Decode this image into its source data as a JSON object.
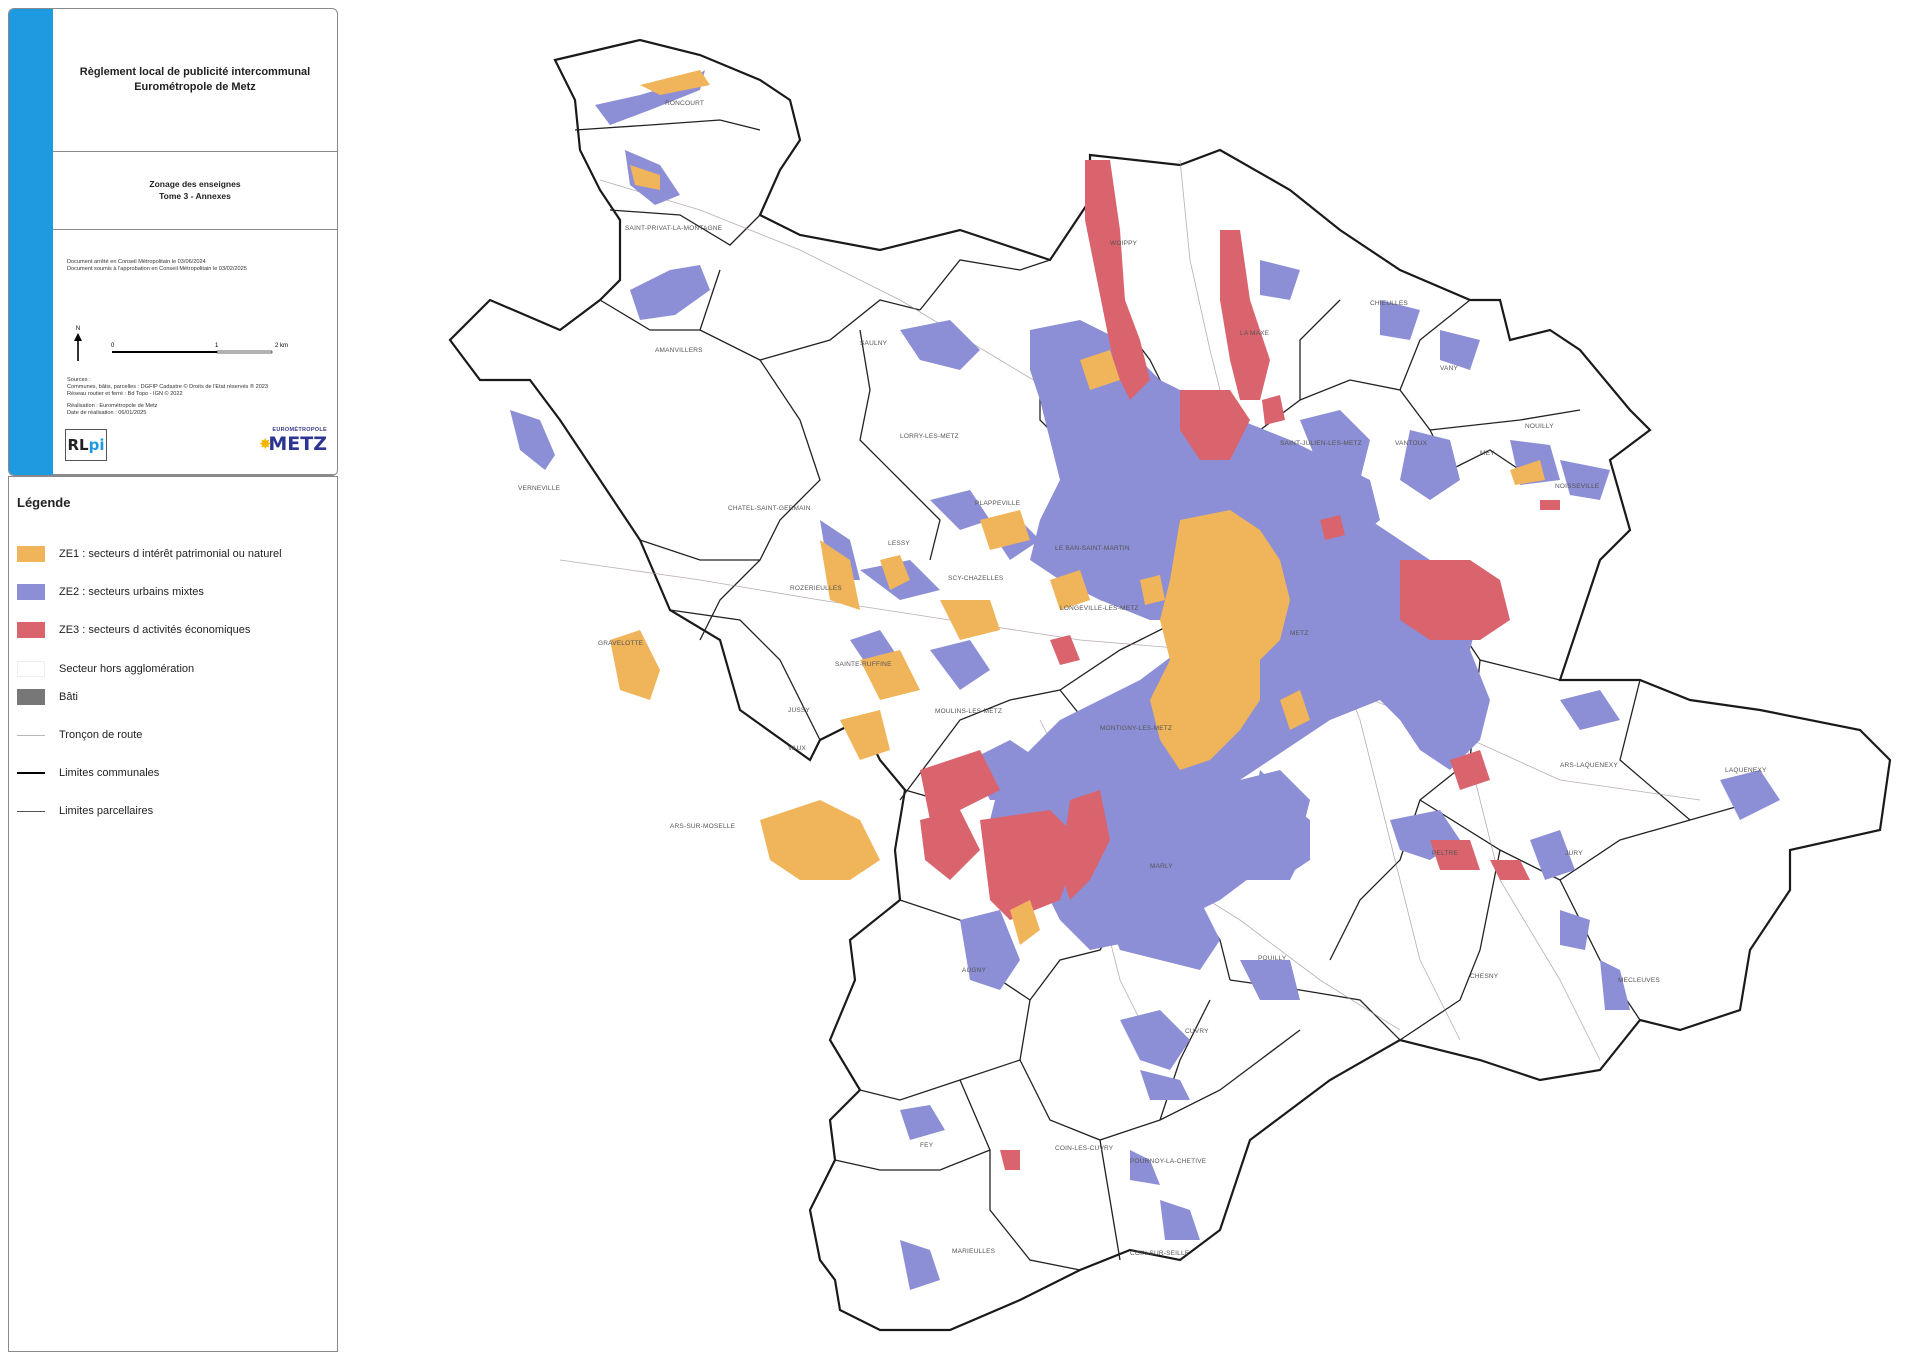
{
  "cartouche": {
    "title_line1": "Règlement local de publicité intercommunal",
    "title_line2": "Eurométropole de Metz",
    "subtitle_line1": "Zonage des enseignes",
    "subtitle_line2": "Tome 3 - Annexes",
    "doc_line1": "Document arrêté en Conseil Métropolitain le 03/06/2024",
    "doc_line2": "Document soumis à l'approbation en Conseil Métropolitain le 03/02/2025",
    "north_label": "N",
    "scale_labels": [
      "0",
      "1",
      "2 km"
    ],
    "sources_line1": "Sources :",
    "sources_line2": "Communes, bâtis, parcelles : DGFIP Cadastre © Droits de l'Etat réservés ® 2023",
    "sources_line3": "Réseau routier et ferré : Bd Topo - IGN © 2022",
    "realisation_line1": "Réalisation : Eurométropole de Metz",
    "realisation_line2": "Date de réalisation : 06/01/2025",
    "logo_rlpi_main": "RL",
    "logo_rlpi_pi": "pi",
    "logo_metz_small": "EUROMÉTROPOLE",
    "logo_metz_big": "METZ"
  },
  "legend": {
    "title": "Légende",
    "items": [
      {
        "label": "ZE1 : secteurs d intérêt patrimonial ou naturel",
        "color": "#f0b45a"
      },
      {
        "label": "ZE2 : secteurs urbains mixtes",
        "color": "#8c8fd6"
      },
      {
        "label": "ZE3 : secteurs d activités économiques",
        "color": "#d9646e"
      },
      {
        "label": "Secteur hors agglomération",
        "color": "#ffffff"
      },
      {
        "label": "Bâti",
        "color": "#777777"
      },
      {
        "label": "Tronçon de route",
        "line": "thin-gray"
      },
      {
        "label": "Limites communales",
        "line": "thick-black"
      },
      {
        "label": "Limites parcellaires",
        "line": "thin-dark"
      }
    ]
  },
  "map_labels": {
    "roncourt": "RONCOURT",
    "saint_privat": "SAINT-PRIVAT-LA-MONTAGNE",
    "amanvillers": "AMANVILLERS",
    "saulny": "SAULNY",
    "woippy": "WOIPPY",
    "la_maxe": "LA MAXE",
    "chieulles": "CHIEULLES",
    "vany": "VANY",
    "lorry": "LORRY-LES-METZ",
    "plappeville": "PLAPPEVILLE",
    "saint_julien": "SAINT-JULIEN-LES-METZ",
    "vantoux": "VANTOUX",
    "mey": "MEY",
    "nouilly": "NOUILLY",
    "noisseville": "NOISSEVILLE",
    "verneville": "VERNEVILLE",
    "chatel": "CHATEL-SAINT-GERMAIN",
    "lessy": "LESSY",
    "le_ban": "LE BAN-SAINT-MARTIN",
    "scy": "SCY-CHAZELLES",
    "rozerieulles": "ROZERIEULLES",
    "longeville": "LONGEVILLE-LES-METZ",
    "metz": "METZ",
    "gravelotte": "GRAVELOTTE",
    "sainte_ruffine": "SAINTE-RUFFINE",
    "jussy": "JUSSY",
    "moulins": "MOULINS-LES-METZ",
    "montigny": "MONTIGNY-LES-METZ",
    "vaux": "VAUX",
    "ars_laquenexy": "ARS-LAQUENEXY",
    "laquenexy": "LAQUENEXY",
    "ars_moselle": "ARS-SUR-MOSELLE",
    "marly": "MARLY",
    "peltre": "PELTRE",
    "jury": "JURY",
    "augny": "AUGNY",
    "pouilly": "POUILLY",
    "chesny": "CHESNY",
    "mecleuves": "MECLEUVES",
    "cuvry": "CUVRY",
    "fey": "FEY",
    "coin_cuvry": "COIN-LES-CUVRY",
    "pournoy": "POURNOY-LA-CHETIVE",
    "marieulles": "MARIEULLES",
    "coin_seille": "COIN-SUR-SEILLE"
  }
}
